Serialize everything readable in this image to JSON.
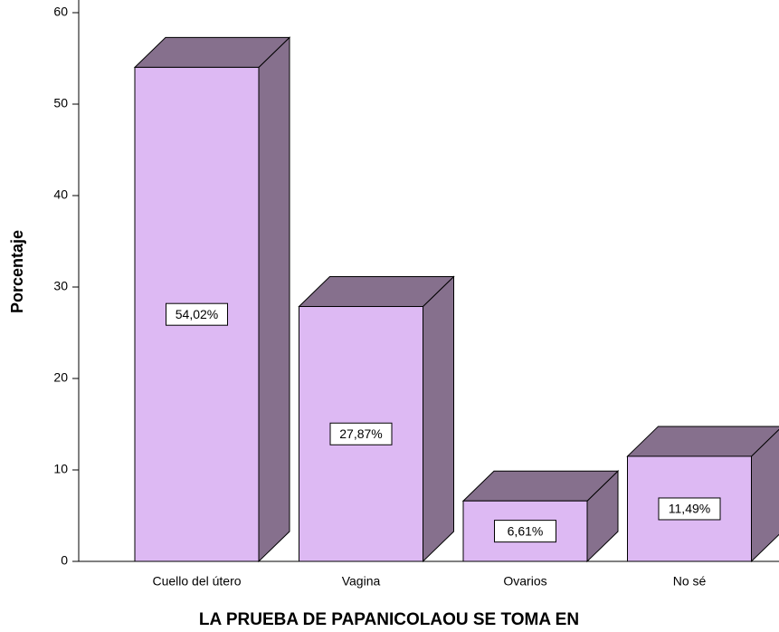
{
  "chart_data": {
    "type": "bar3d",
    "x_label": "LA PRUEBA DE PAPANICOLAOU SE TOMA EN",
    "y_label": "Porcentaje",
    "categories": [
      "Cuello del útero",
      "Vagina",
      "Ovarios",
      "No sé"
    ],
    "values": [
      54.02,
      27.87,
      6.61,
      11.49
    ],
    "value_labels": [
      "54,02%",
      "27,87%",
      "6,61%",
      "11,49%"
    ],
    "color": "#ddb9f3",
    "side_color": "#86708d",
    "ylim": [
      0,
      60
    ],
    "yticks": [
      0,
      10,
      20,
      30,
      40,
      50,
      60
    ]
  }
}
